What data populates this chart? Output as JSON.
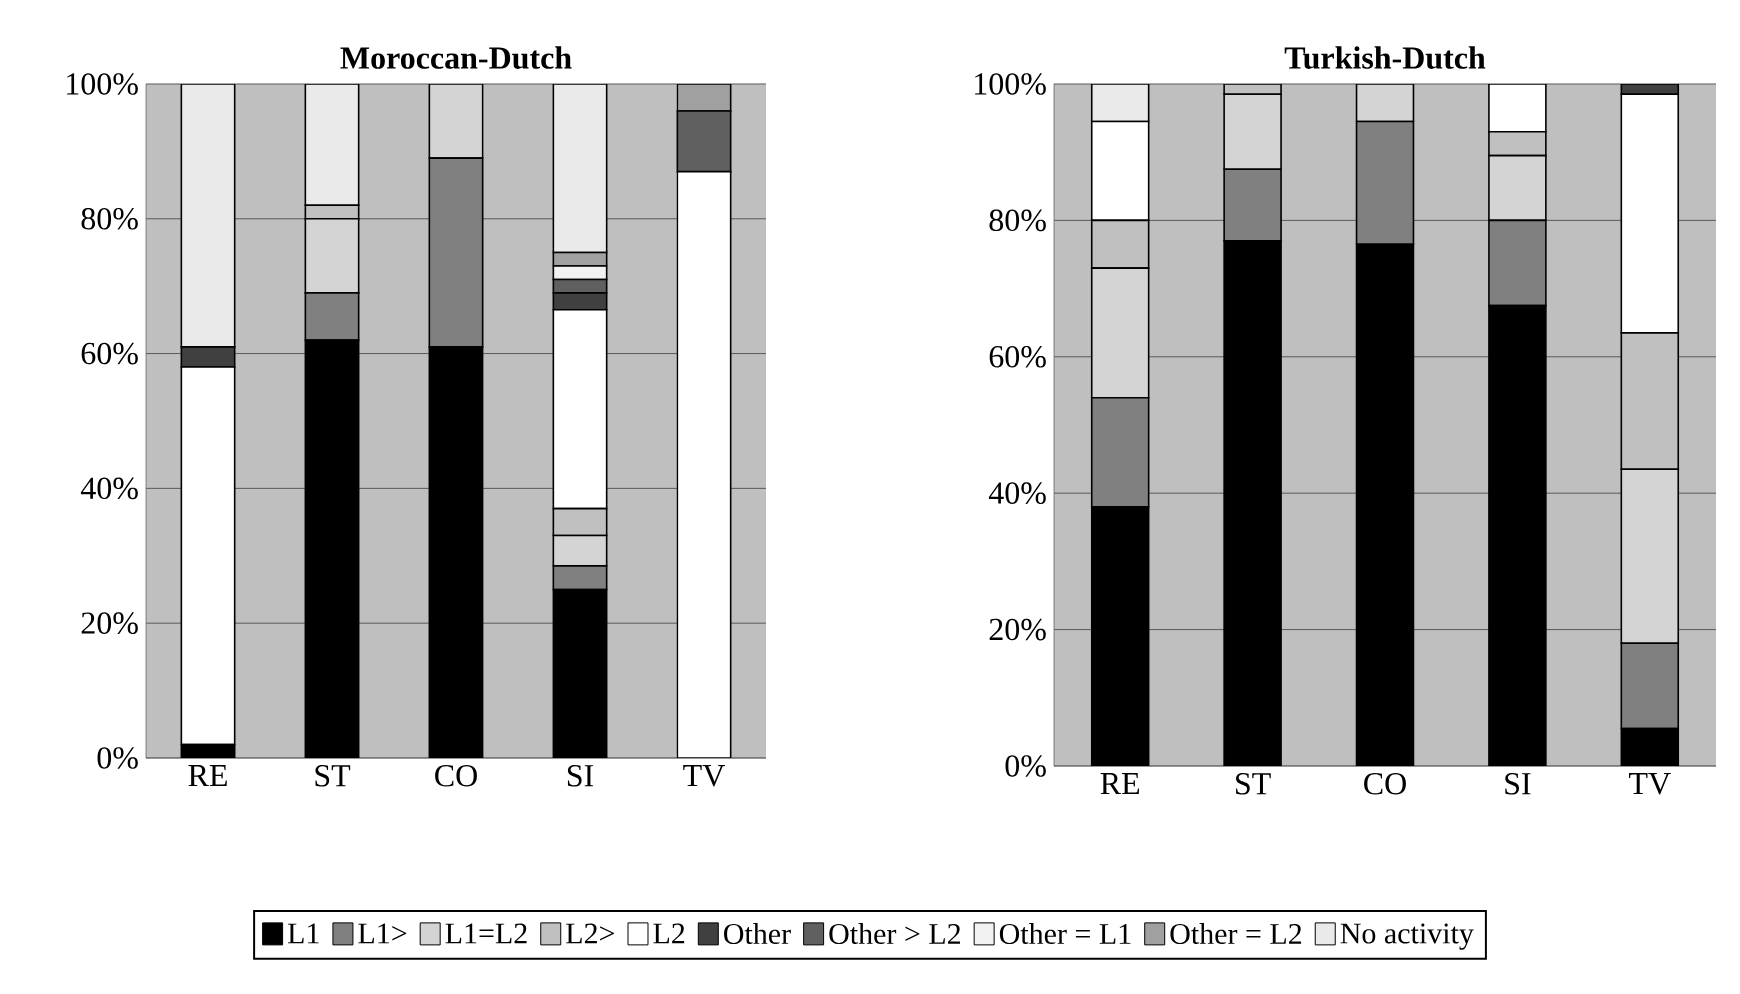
{
  "chart_data": [
    {
      "type": "bar",
      "stacked": true,
      "title": "Moroccan-Dutch",
      "categories": [
        "RE",
        "ST",
        "CO",
        "SI",
        "TV"
      ],
      "ylim": [
        0,
        100
      ],
      "yticks": [
        {
          "value": 0,
          "label": "0%"
        },
        {
          "value": 20,
          "label": "20%"
        },
        {
          "value": 40,
          "label": "40%"
        },
        {
          "value": 60,
          "label": "60%"
        },
        {
          "value": 80,
          "label": "80%"
        },
        {
          "value": 100,
          "label": "100%"
        }
      ],
      "grid": "y",
      "legend": "bottom",
      "series": [
        {
          "name": "L1",
          "color": "#000000",
          "values": [
            2,
            62,
            61,
            25,
            null
          ]
        },
        {
          "name": "L1>",
          "color": "#808080",
          "values": [
            null,
            7,
            28,
            3.5,
            null
          ]
        },
        {
          "name": "L1=L2",
          "color": "#d4d4d4",
          "values": [
            null,
            11,
            11,
            4.5,
            null
          ]
        },
        {
          "name": "L2>",
          "color": "#c0c0c0",
          "values": [
            null,
            2,
            null,
            4,
            null
          ]
        },
        {
          "name": "L2",
          "color": "#ffffff",
          "values": [
            56,
            null,
            null,
            29.5,
            87
          ]
        },
        {
          "name": "Other",
          "color": "#404040",
          "values": [
            3,
            null,
            null,
            2.5,
            null
          ]
        },
        {
          "name": "Other > L2",
          "color": "#606060",
          "values": [
            null,
            null,
            null,
            2,
            9
          ]
        },
        {
          "name": "Other = L1",
          "color": "#f2f2f2",
          "values": [
            null,
            null,
            null,
            2,
            null
          ]
        },
        {
          "name": "Other = L2",
          "color": "#a0a0a0",
          "values": [
            null,
            null,
            null,
            2,
            4
          ]
        },
        {
          "name": "No activity",
          "color": "#eaeaea",
          "values": [
            39,
            18,
            null,
            25,
            null
          ]
        }
      ]
    },
    {
      "type": "bar",
      "stacked": true,
      "title": "Turkish-Dutch",
      "categories": [
        "RE",
        "ST",
        "CO",
        "SI",
        "TV"
      ],
      "ylim": [
        0,
        100
      ],
      "yticks": [
        {
          "value": 0,
          "label": "0%"
        },
        {
          "value": 20,
          "label": "20%"
        },
        {
          "value": 40,
          "label": "40%"
        },
        {
          "value": 60,
          "label": "60%"
        },
        {
          "value": 80,
          "label": "80%"
        },
        {
          "value": 100,
          "label": "100%"
        }
      ],
      "grid": "y",
      "series": [
        {
          "color": "#000000",
          "values": [
            38,
            77,
            76.5,
            67.5,
            5.5
          ]
        },
        {
          "color": "#808080",
          "values": [
            16,
            10.5,
            18,
            12.5,
            12.5
          ]
        },
        {
          "color": "#d4d4d4",
          "values": [
            19,
            11,
            5.5,
            9.5,
            25.5
          ]
        },
        {
          "color": "#c0c0c0",
          "values": [
            7,
            1.5,
            null,
            3.5,
            20
          ]
        },
        {
          "color": "#ffffff",
          "values": [
            14.5,
            null,
            null,
            7,
            35
          ]
        },
        {
          "color": "#404040",
          "values": [
            null,
            null,
            null,
            null,
            1.5
          ]
        },
        {
          "color": "#606060",
          "values": [
            null,
            null,
            null,
            null,
            null
          ]
        },
        {
          "color": "#f2f2f2",
          "values": [
            null,
            null,
            null,
            null,
            null
          ]
        },
        {
          "color": "#a0a0a0",
          "values": [
            null,
            null,
            null,
            null,
            null
          ]
        },
        {
          "color": "#eaeaea",
          "values": [
            5.5,
            null,
            null,
            null,
            null
          ]
        }
      ]
    }
  ]
}
